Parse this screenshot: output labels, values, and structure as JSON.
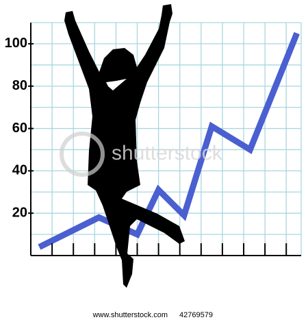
{
  "chart_data": {
    "type": "line",
    "x": [
      0.4,
      3.2,
      5,
      6,
      7.2,
      8.5,
      10.3,
      12.5
    ],
    "series": [
      {
        "color": "#4a5fd0",
        "values": [
          4,
          18,
          10,
          31,
          19,
          61,
          50,
          105
        ]
      }
    ],
    "xlim": [
      0,
      12.7
    ],
    "xticks": [
      1,
      2,
      3,
      4,
      5,
      6,
      7,
      8,
      9,
      10,
      11,
      12
    ],
    "ylim": [
      0,
      110
    ],
    "yticks": [
      20,
      40,
      60,
      80,
      100
    ],
    "grid_lines_y": [
      10,
      30,
      50,
      70,
      90,
      110
    ],
    "grid": true,
    "grid_color": "#a9d6e0",
    "watermark": "shutterstock",
    "footer": {
      "site": "www.shutterstock.com",
      "id": "42769579"
    }
  }
}
